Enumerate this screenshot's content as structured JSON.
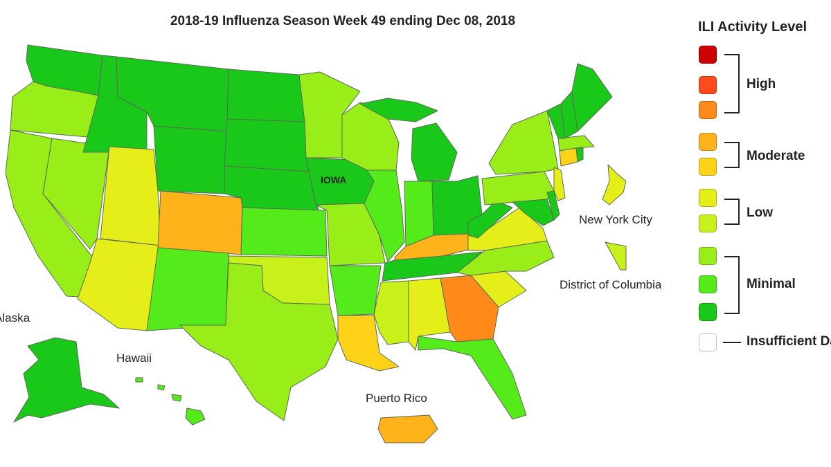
{
  "title": "2018-19 Influenza Season Week 49 ending Dec 08, 2018",
  "legend": {
    "title": "ILI Activity Level",
    "colors": [
      "#cc0000",
      "#ff4a1a",
      "#ff8a1a",
      "#ffb31a",
      "#ffd21a",
      "#e6ee1a",
      "#c8f01a",
      "#99ee1a",
      "#55ea1a",
      "#1ac81a",
      "#ffffff"
    ],
    "groups": [
      {
        "label": "High"
      },
      {
        "label": "Moderate"
      },
      {
        "label": "Low"
      },
      {
        "label": "Minimal"
      }
    ],
    "insufficient_label": "Insufficient Data"
  },
  "labels": {
    "iowa": "IOWA",
    "nyc": "New York City",
    "dc": "District of Columbia",
    "alaska": "Alaska",
    "hawaii": "Hawaii",
    "pr": "Puerto Rico"
  },
  "activity": {
    "WA": "Minimal",
    "OR": "Minimal",
    "CA": "Minimal",
    "NV": "Minimal",
    "ID": "Minimal",
    "MT": "Minimal",
    "WY": "Minimal",
    "UT": "Low",
    "AZ": "Low",
    "CO": "Moderate",
    "NM": "Minimal",
    "TX": "Minimal",
    "ND": "Minimal",
    "SD": "Minimal",
    "NE": "Minimal",
    "KS": "Minimal",
    "OK": "Low",
    "MN": "Minimal",
    "IA": "Minimal",
    "MO": "Minimal",
    "AR": "Minimal",
    "LA": "Moderate",
    "WI": "Minimal",
    "IL": "Minimal",
    "MI": "Minimal",
    "IN": "Minimal",
    "OH": "Minimal",
    "KY": "Moderate",
    "TN": "Minimal",
    "MS": "Low",
    "AL": "Low",
    "GA": "High",
    "FL": "Minimal",
    "SC": "Low",
    "NC": "Minimal",
    "VA": "Low",
    "WV": "Minimal",
    "PA": "Minimal",
    "NY": "Minimal",
    "VT": "Minimal",
    "NH": "Minimal",
    "ME": "Minimal",
    "MA": "Minimal",
    "CT": "Moderate",
    "NJ": "Low",
    "MD": "Minimal",
    "DE": "Minimal",
    "AK": "Minimal",
    "HI": "Minimal",
    "PR": "Moderate",
    "NYC": "Low",
    "DC": "Low"
  }
}
